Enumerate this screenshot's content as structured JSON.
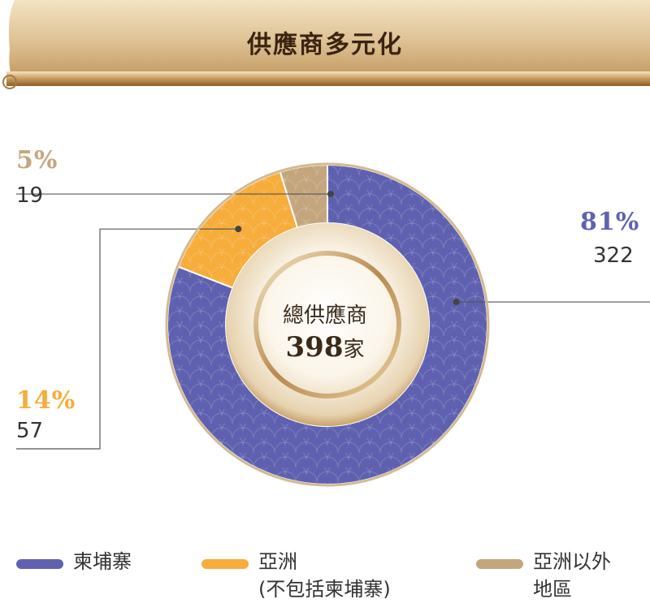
{
  "header": {
    "title": "供應商多元化"
  },
  "center": {
    "title": "總供應商",
    "total": "398",
    "unit": "家"
  },
  "colors": {
    "cambodia": "#5f61b0",
    "asia": "#f6ad3b",
    "outside": "#c4a67e"
  },
  "chart_data": {
    "type": "pie",
    "title": "供應商多元化",
    "total": 398,
    "slices": [
      {
        "name": "柬埔寨",
        "percent": "81%",
        "count": "322",
        "value": 322
      },
      {
        "name": "亞洲 (不包括柬埔寨)",
        "percent": "14%",
        "count": "57",
        "value": 57
      },
      {
        "name": "亞洲以外地區",
        "percent": "5%",
        "count": "19",
        "value": 19
      }
    ],
    "legend": [
      {
        "line1": "柬埔寨",
        "line2": ""
      },
      {
        "line1": "亞洲",
        "line2": "(不包括柬埔寨)"
      },
      {
        "line1": "亞洲以外",
        "line2": "地區"
      }
    ]
  }
}
